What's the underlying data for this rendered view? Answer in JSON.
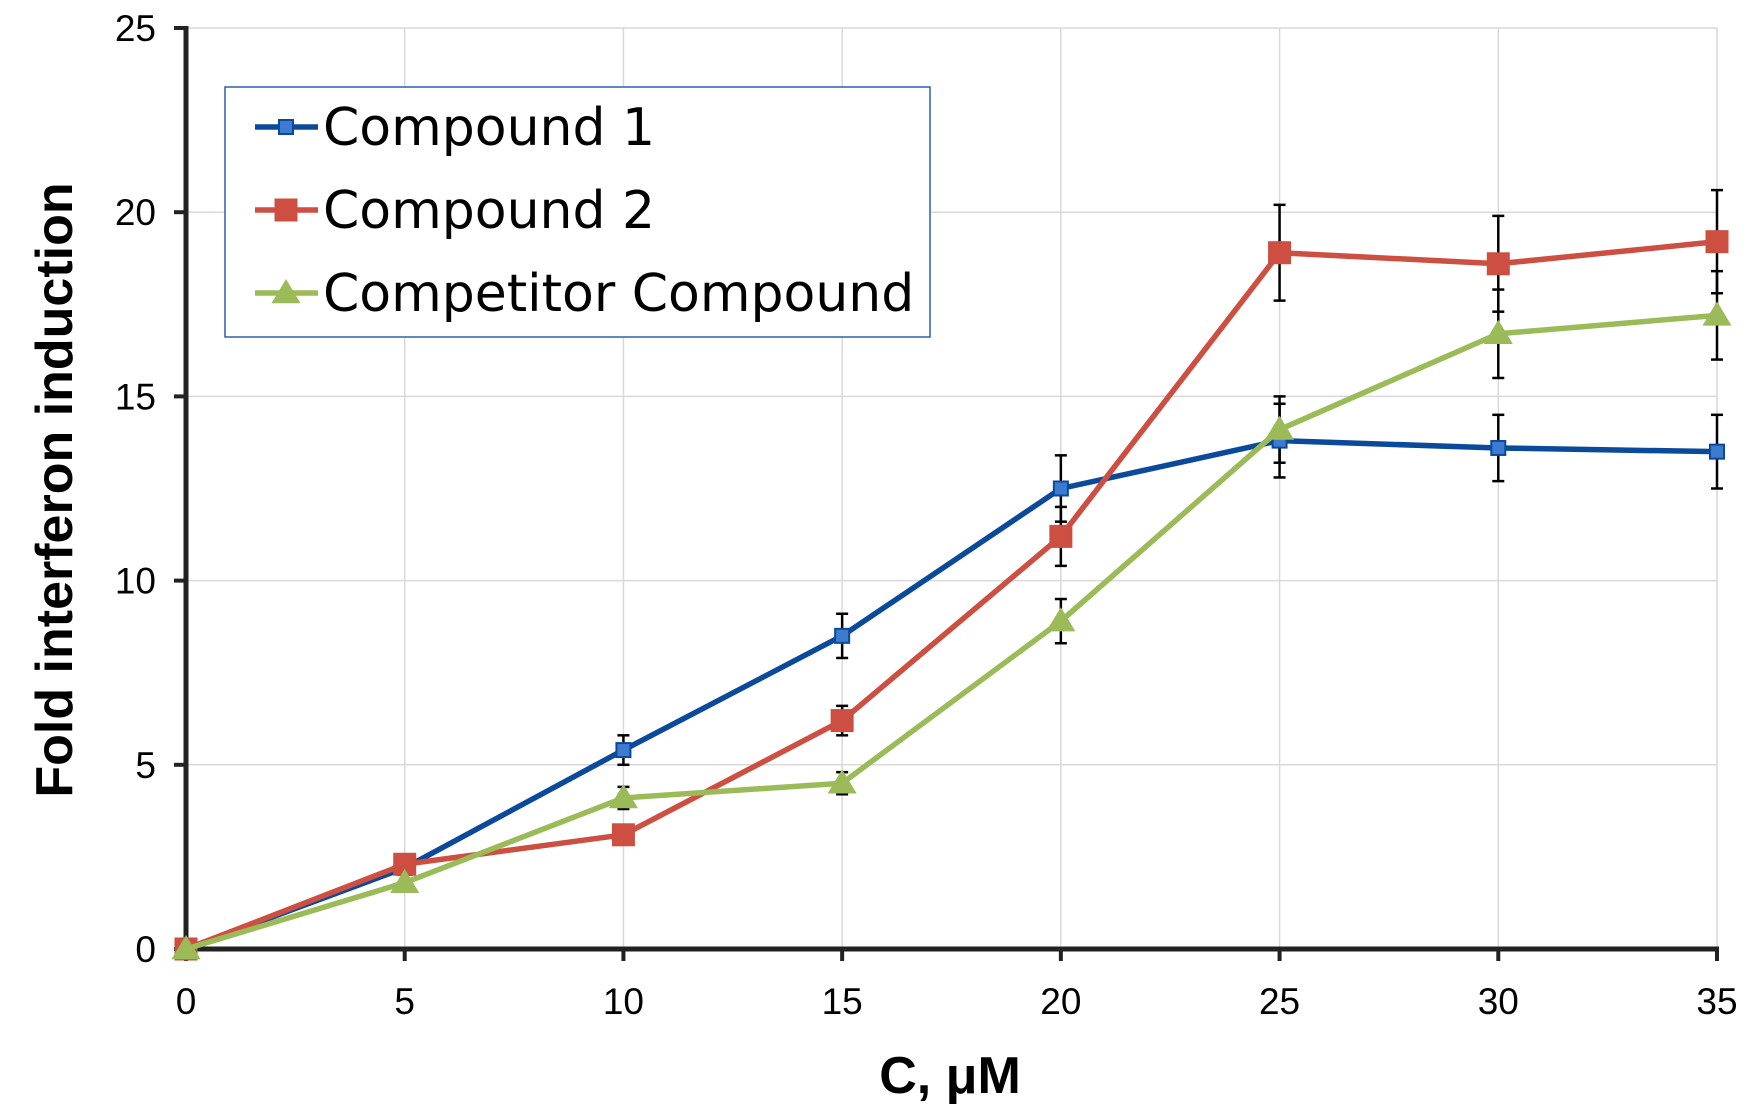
{
  "chart_data": {
    "type": "line",
    "title": "",
    "xlabel": "C, μM",
    "ylabel": "Fold interferon induction",
    "x": [
      0,
      5,
      10,
      15,
      20,
      25,
      30,
      35
    ],
    "xlim": [
      0,
      35
    ],
    "ylim": [
      0,
      25
    ],
    "xticks": [
      0,
      5,
      10,
      15,
      20,
      25,
      30,
      35
    ],
    "yticks": [
      0,
      5,
      10,
      15,
      20,
      25
    ],
    "grid": true,
    "legend_position": "top-left",
    "series": [
      {
        "name": "Compound 1",
        "color": "#0b4a9b",
        "marker": "square-small",
        "values": [
          0,
          2.2,
          5.4,
          8.5,
          12.5,
          13.8,
          13.6,
          13.5
        ],
        "errors": [
          0,
          0,
          0.4,
          0.6,
          0.9,
          1.0,
          0.9,
          1.0
        ]
      },
      {
        "name": "Compound 2",
        "color": "#cc4f41",
        "marker": "square",
        "values": [
          0,
          2.3,
          3.1,
          6.2,
          11.2,
          18.9,
          18.6,
          19.2
        ],
        "errors": [
          0,
          0,
          0,
          0.4,
          0.8,
          1.3,
          1.3,
          1.4
        ]
      },
      {
        "name": "Competitor Compound",
        "color": "#9bbb59",
        "marker": "triangle",
        "values": [
          0,
          1.8,
          4.1,
          4.5,
          8.9,
          14.1,
          16.7,
          17.2
        ],
        "errors": [
          0,
          0,
          0.3,
          0.3,
          0.6,
          0.9,
          1.2,
          1.2
        ]
      }
    ]
  }
}
